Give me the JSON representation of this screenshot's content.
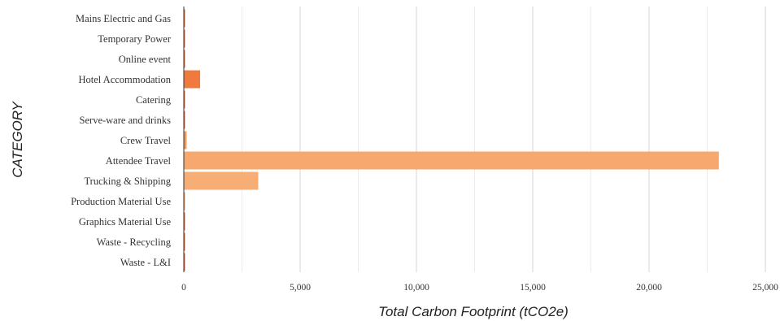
{
  "chart_data": {
    "type": "bar",
    "orientation": "horizontal",
    "xlabel": "Total Carbon Footprint (tCO2e)",
    "ylabel": "CATEGORY",
    "categories": [
      "Mains Electric and Gas",
      "Temporary Power",
      "Online event",
      "Hotel Accommodation",
      "Catering",
      "Serve-ware and drinks",
      "Crew Travel",
      "Attendee Travel",
      "Trucking & Shipping",
      "Production Material Use",
      "Graphics Material Use",
      "Waste - Recycling",
      "Waste - L&I"
    ],
    "values": [
      40,
      10,
      10,
      700,
      20,
      15,
      120,
      23000,
      3200,
      50,
      10,
      10,
      10
    ],
    "bar_colors": [
      "#e8622c",
      "#e8622c",
      "#e8622c",
      "#f07a3d",
      "#e8622c",
      "#e8622c",
      "#f39a5c",
      "#f6a86e",
      "#f7ae76",
      "#f39a5c",
      "#e8622c",
      "#e8622c",
      "#e8622c"
    ],
    "xlim": [
      0,
      25000
    ],
    "xticks": [
      0,
      5000,
      10000,
      15000,
      20000,
      25000
    ],
    "xtick_labels": [
      "0",
      "5,000",
      "10,000",
      "15,000",
      "20,000",
      "25,000"
    ],
    "grid": true,
    "legend": "none"
  }
}
